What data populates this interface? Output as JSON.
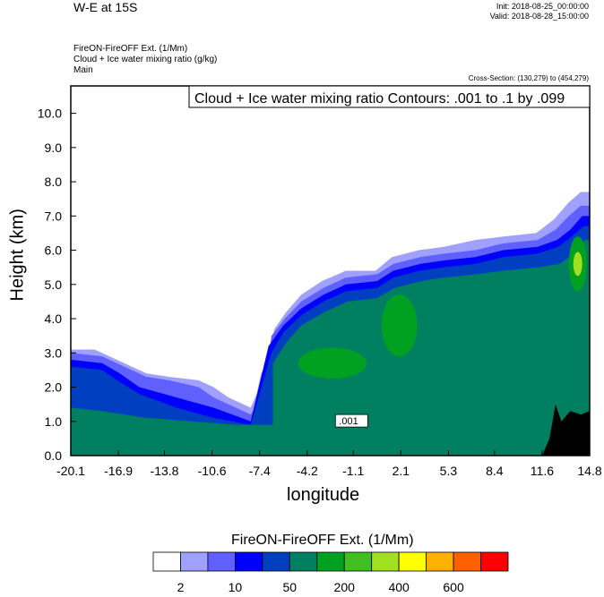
{
  "header": {
    "title": "W-E at 15S",
    "init": "Init: 2018-08-25_00:00:00",
    "valid": "Valid: 2018-08-28_15:00:00",
    "field1": "FireON-FireOFF Ext.   (1/Mm)",
    "field2": "Cloud + Ice water mixing ratio   (g/kg)",
    "field3": "Main",
    "cross_section": "Cross-Section: (130,279) to (454,279)"
  },
  "chart_data": {
    "type": "filled-contour cross-section",
    "title": "Cloud + Ice water mixing ratio Contours: .001 to .1 by .099",
    "xlabel": "longitude",
    "ylabel": "Height (km)",
    "xlim": [
      -20.1,
      14.8
    ],
    "ylim": [
      0.0,
      10.8
    ],
    "x_ticks": [
      "-20.1",
      "-16.9",
      "-13.8",
      "-10.6",
      "-7.4",
      "-4.2",
      "-1.1",
      "2.1",
      "5.3",
      "8.4",
      "11.6",
      "14.8"
    ],
    "y_ticks": [
      "0.0",
      "1.0",
      "2.0",
      "3.0",
      "4.0",
      "5.0",
      "6.0",
      "7.0",
      "8.0",
      "9.0",
      "10.0"
    ],
    "contour_label": ".001",
    "colorbar": {
      "title": "FireON-FireOFF Ext.  (1/Mm)",
      "labels": [
        "2",
        "10",
        "50",
        "200",
        "400",
        "600"
      ],
      "colors": [
        "#ffffff",
        "#a0a0ff",
        "#6060ff",
        "#0000ff",
        "#0040c0",
        "#008060",
        "#00a020",
        "#40c020",
        "#a0e020",
        "#ffff00",
        "#ffb000",
        "#ff6000",
        "#ff0000"
      ]
    },
    "regions": [
      {
        "level": 1,
        "top": [
          [
            -20.1,
            3.1
          ],
          [
            -18.5,
            3.1
          ],
          [
            -16.5,
            2.7
          ],
          [
            -15,
            2.4
          ],
          [
            -13.5,
            2.3
          ],
          [
            -11.5,
            2.2
          ],
          [
            -10.5,
            2.0
          ],
          [
            -9.5,
            1.7
          ],
          [
            -8,
            1.4
          ],
          [
            -7.6,
            1.8
          ],
          [
            -7.3,
            2.4
          ],
          [
            -6.9,
            2.7
          ],
          [
            -6.4,
            3.7
          ],
          [
            -5.6,
            4.2
          ],
          [
            -4.6,
            4.7
          ],
          [
            -3.2,
            5.1
          ],
          [
            -1.6,
            5.4
          ],
          [
            0.4,
            5.4
          ],
          [
            1.5,
            5.8
          ],
          [
            3.3,
            6.0
          ],
          [
            5,
            6.1
          ],
          [
            7.1,
            6.3
          ],
          [
            9,
            6.4
          ],
          [
            11.2,
            6.5
          ],
          [
            12.4,
            6.9
          ],
          [
            13.4,
            7.4
          ],
          [
            14.2,
            7.7
          ],
          [
            14.8,
            7.7
          ]
        ]
      },
      {
        "level": 2,
        "top": [
          [
            -20.1,
            3.0
          ],
          [
            -18,
            2.9
          ],
          [
            -16.5,
            2.6
          ],
          [
            -15,
            2.3
          ],
          [
            -13.5,
            2.2
          ],
          [
            -11.5,
            2.0
          ],
          [
            -10.5,
            1.7
          ],
          [
            -8,
            1.2
          ],
          [
            -7.4,
            1.6
          ],
          [
            -7.0,
            2.3
          ],
          [
            -6.6,
            3.5
          ],
          [
            -5.7,
            4.0
          ],
          [
            -4.6,
            4.5
          ],
          [
            -3.1,
            4.9
          ],
          [
            -1.6,
            5.2
          ],
          [
            0.5,
            5.3
          ],
          [
            1.6,
            5.6
          ],
          [
            3.4,
            5.8
          ],
          [
            5,
            5.9
          ],
          [
            7.1,
            6.0
          ],
          [
            9,
            6.2
          ],
          [
            11.3,
            6.3
          ],
          [
            12.5,
            6.6
          ],
          [
            13.4,
            7.0
          ],
          [
            14.2,
            7.3
          ],
          [
            14.8,
            7.3
          ]
        ]
      },
      {
        "level": 3,
        "top": [
          [
            -20.1,
            2.8
          ],
          [
            -18,
            2.7
          ],
          [
            -16.8,
            2.4
          ],
          [
            -15.5,
            2.0
          ],
          [
            -13,
            1.7
          ],
          [
            -10.5,
            1.4
          ],
          [
            -8,
            1.0
          ],
          [
            -6.8,
            3.2
          ],
          [
            -5.8,
            3.8
          ],
          [
            -4.6,
            4.3
          ],
          [
            -3.1,
            4.7
          ],
          [
            -1.6,
            5.0
          ],
          [
            0.5,
            5.1
          ],
          [
            1.6,
            5.4
          ],
          [
            3.4,
            5.6
          ],
          [
            5,
            5.7
          ],
          [
            7.1,
            5.8
          ],
          [
            9,
            6.0
          ],
          [
            11.3,
            6.1
          ],
          [
            12.6,
            6.3
          ],
          [
            13.5,
            6.6
          ],
          [
            14.3,
            7.0
          ],
          [
            14.8,
            7.0
          ]
        ]
      },
      {
        "level": 4,
        "top": [
          [
            -20.1,
            2.6
          ],
          [
            -18,
            2.5
          ],
          [
            -17,
            2.2
          ],
          [
            -15.5,
            1.8
          ],
          [
            -13,
            1.4
          ],
          [
            -10.5,
            1.1
          ],
          [
            -8,
            0.9
          ],
          [
            -6.6,
            3.0
          ],
          [
            -5.8,
            3.6
          ],
          [
            -4.6,
            4.1
          ],
          [
            -3.1,
            4.5
          ],
          [
            -1.6,
            4.8
          ],
          [
            0.5,
            4.9
          ],
          [
            1.6,
            5.2
          ],
          [
            3.4,
            5.4
          ],
          [
            5,
            5.5
          ],
          [
            7.1,
            5.6
          ],
          [
            9,
            5.8
          ],
          [
            11.3,
            5.9
          ],
          [
            12.7,
            6.1
          ],
          [
            13.6,
            6.4
          ],
          [
            14.4,
            6.7
          ],
          [
            14.8,
            6.7
          ]
        ]
      },
      {
        "level": 5,
        "top": [
          [
            -20.1,
            1.4
          ],
          [
            -18,
            1.3
          ],
          [
            -15,
            1.1
          ],
          [
            -12,
            1.0
          ],
          [
            -9,
            0.9
          ],
          [
            -6.5,
            0.9
          ],
          [
            -6.5,
            2.7
          ],
          [
            -5.6,
            3.3
          ],
          [
            -4.6,
            3.8
          ],
          [
            -3,
            4.2
          ],
          [
            -1.5,
            4.5
          ],
          [
            0.5,
            4.6
          ],
          [
            1.7,
            4.9
          ],
          [
            3.5,
            5.1
          ],
          [
            5,
            5.2
          ],
          [
            7.2,
            5.3
          ],
          [
            9,
            5.4
          ],
          [
            11.4,
            5.5
          ],
          [
            12.8,
            5.6
          ],
          [
            13.7,
            5.9
          ],
          [
            14.5,
            6.3
          ],
          [
            14.8,
            6.3
          ]
        ]
      }
    ],
    "patches": [
      {
        "level": 6,
        "cx": -2.5,
        "cy": 2.7,
        "rx": 2.3,
        "ry": 0.45
      },
      {
        "level": 6,
        "cx": 2.0,
        "cy": 3.8,
        "rx": 1.2,
        "ry": 0.9
      },
      {
        "level": 6,
        "cx": 14.0,
        "cy": 5.6,
        "rx": 0.6,
        "ry": 0.8
      },
      {
        "level": 8,
        "cx": 14.0,
        "cy": 5.6,
        "rx": 0.3,
        "ry": 0.35
      }
    ],
    "terrain": [
      [
        11.6,
        0.0
      ],
      [
        12.1,
        0.5
      ],
      [
        12.5,
        1.5
      ],
      [
        12.9,
        1.0
      ],
      [
        13.5,
        1.3
      ],
      [
        14.2,
        1.2
      ],
      [
        14.8,
        1.3
      ],
      [
        14.8,
        0.0
      ]
    ]
  }
}
